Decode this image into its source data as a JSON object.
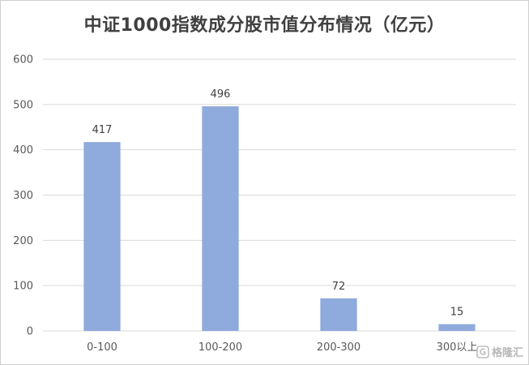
{
  "chart_data": {
    "type": "bar",
    "title": "中证1000指数成分股市值分布情况（亿元）",
    "categories": [
      "0-100",
      "100-200",
      "200-300",
      "300以上"
    ],
    "values": [
      417,
      496,
      72,
      15
    ],
    "ylim": [
      0,
      600
    ],
    "yticks": [
      0,
      100,
      200,
      300,
      400,
      500,
      600
    ],
    "xlabel": "",
    "ylabel": "",
    "grid": true,
    "legend": "none",
    "bar_color": "#8faadc",
    "grid_color": "#d9d9d9",
    "data_labels": true
  },
  "watermark": {
    "text": "格隆汇",
    "icon": "glh-logo-icon"
  }
}
